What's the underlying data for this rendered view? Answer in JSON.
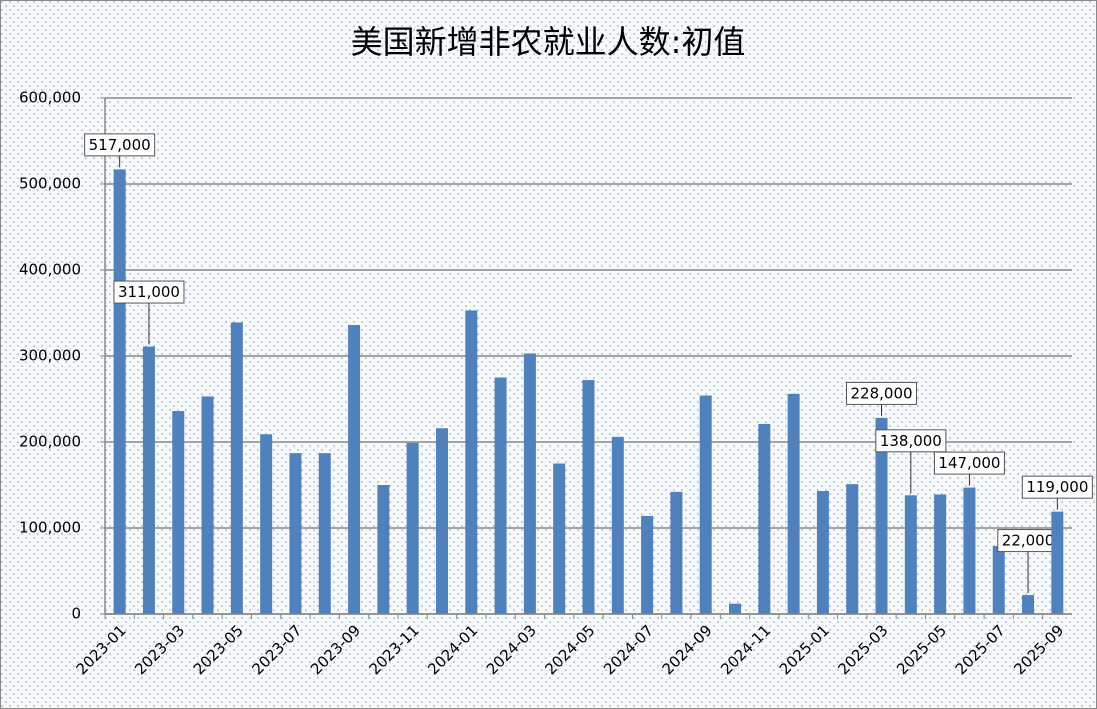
{
  "chart_data": {
    "type": "bar",
    "title": "美国新增非农就业人数:初值",
    "categories": [
      "2023-01",
      null,
      "2023-03",
      null,
      "2023-05",
      null,
      "2023-07",
      null,
      "2023-09",
      null,
      "2023-11",
      null,
      "2024-01",
      null,
      "2024-03",
      null,
      "2024-05",
      null,
      "2024-07",
      null,
      "2024-09",
      null,
      "2024-11",
      null,
      "2025-01",
      null,
      "2025-03",
      null,
      "2025-05",
      null,
      "2025-07",
      null,
      "2025-09"
    ],
    "values": [
      517000,
      311000,
      236000,
      253000,
      339000,
      209000,
      187000,
      187000,
      336000,
      150000,
      199000,
      216000,
      353000,
      275000,
      303000,
      175000,
      272000,
      206000,
      114000,
      142000,
      254000,
      12000,
      221000,
      256000,
      143000,
      151000,
      228000,
      138000,
      139000,
      147000,
      79000,
      22000,
      119000
    ],
    "value_labels": [
      "517,000",
      "311,000",
      null,
      null,
      null,
      null,
      null,
      null,
      null,
      null,
      null,
      null,
      null,
      null,
      null,
      null,
      null,
      null,
      null,
      null,
      null,
      null,
      null,
      null,
      null,
      null,
      "228,000",
      "138,000",
      null,
      "147,000",
      null,
      "22,000",
      "119,000"
    ],
    "color": "#4f81bd",
    "ylim": [
      0,
      600000
    ],
    "yticks": [
      0,
      {
        "value": 100000,
        "label": "100,000"
      },
      {
        "value": 200000,
        "label": "200,000"
      },
      {
        "value": 300000,
        "label": "300,000"
      },
      {
        "value": 400000,
        "label": "400,000"
      },
      {
        "value": 500000,
        "label": "500,000"
      },
      {
        "value": 600000,
        "label": "600,000"
      }
    ],
    "grid": true
  }
}
